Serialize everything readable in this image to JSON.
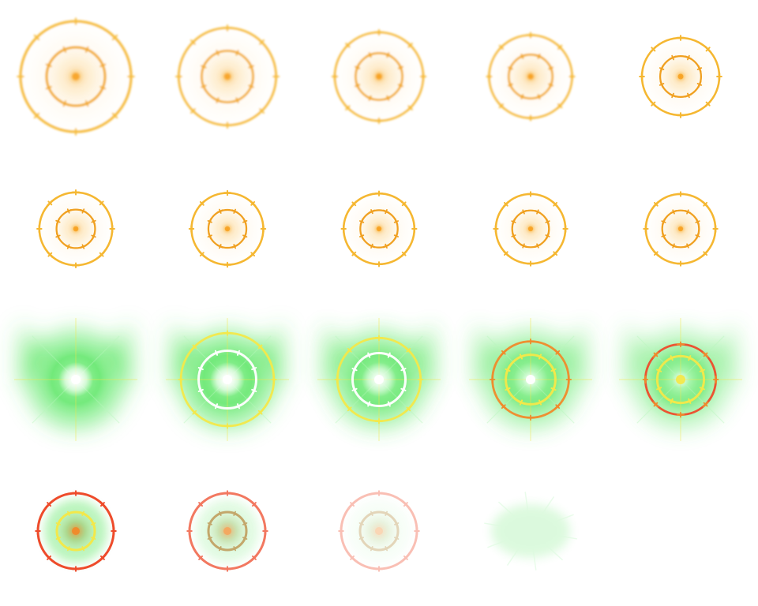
{
  "sprite_sheet": {
    "columns": 5,
    "rows": 4,
    "colors": {
      "gold": "#f5b731",
      "gold_dark": "#f0a020",
      "gold_core": "#f7a020",
      "gold_glow": "#fbe3b0",
      "green": "#3fe34a",
      "green_light": "#b9f7bd",
      "yellow": "#f3e84a",
      "orange": "#f08a2a",
      "red": "#ee4b2b",
      "white": "#ffffff"
    },
    "frames": [
      {
        "style": "gold",
        "scale": 1.0,
        "opacity": 0.95,
        "blur": 1.4
      },
      {
        "style": "gold",
        "scale": 0.88,
        "opacity": 0.95,
        "blur": 1.0
      },
      {
        "style": "gold",
        "scale": 0.8,
        "opacity": 1.0,
        "blur": 0.6
      },
      {
        "style": "gold",
        "scale": 0.75,
        "opacity": 1.0,
        "blur": 0.3
      },
      {
        "style": "gold",
        "scale": 0.7,
        "opacity": 1.0,
        "blur": 0.0
      },
      {
        "style": "gold",
        "scale": 0.66,
        "opacity": 1.0,
        "blur": 0.0
      },
      {
        "style": "gold",
        "scale": 0.65,
        "opacity": 1.0,
        "blur": 0.0
      },
      {
        "style": "gold",
        "scale": 0.64,
        "opacity": 1.0,
        "blur": 0.0
      },
      {
        "style": "gold",
        "scale": 0.63,
        "opacity": 1.0,
        "blur": 0.0
      },
      {
        "style": "gold",
        "scale": 0.63,
        "opacity": 1.0,
        "blur": 0.0
      },
      {
        "style": "burst",
        "ring": 0.0,
        "ring_color": "yellow",
        "glow": 1.0,
        "white": 1.0
      },
      {
        "style": "burst",
        "ring": 0.95,
        "ring_color": "yellow",
        "glow": 1.0,
        "white": 1.0
      },
      {
        "style": "burst",
        "ring": 0.85,
        "ring_color": "yellow",
        "glow": 0.9,
        "white": 0.8
      },
      {
        "style": "burst",
        "ring": 0.78,
        "ring_color": "orange",
        "glow": 0.8,
        "white": 0.35
      },
      {
        "style": "burst",
        "ring": 0.72,
        "ring_color": "orange_red",
        "glow": 0.7,
        "white": 0.1
      },
      {
        "style": "fade",
        "opacity": 1.0,
        "glow": 0.6,
        "ring_color": "red"
      },
      {
        "style": "fade",
        "opacity": 0.75,
        "glow": 0.35,
        "ring_color": "red"
      },
      {
        "style": "fade",
        "opacity": 0.35,
        "glow": 0.2,
        "ring_color": "red"
      },
      {
        "style": "wisp",
        "opacity": 0.18
      },
      {
        "style": "empty"
      }
    ]
  }
}
